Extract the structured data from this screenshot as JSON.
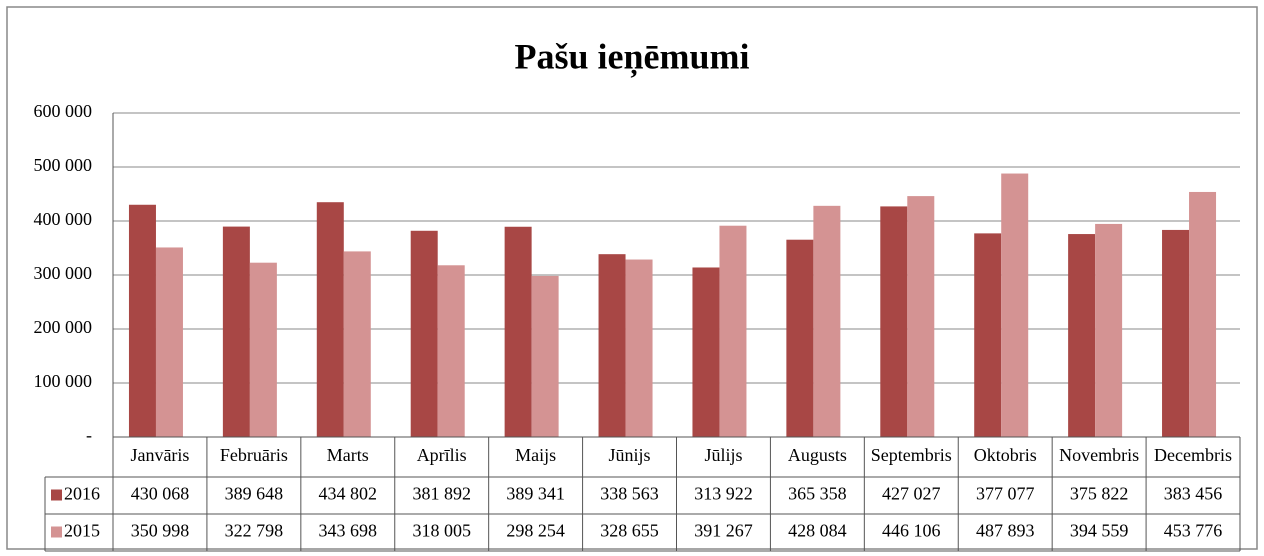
{
  "chart_data": {
    "type": "bar",
    "title": "Pašu ieņēmumi",
    "categories": [
      "Janvāris",
      "Februāris",
      "Marts",
      "Aprīlis",
      "Maijs",
      "Jūnijs",
      "Jūlijs",
      "Augusts",
      "Septembris",
      "Oktobris",
      "Novembris",
      "Decembris"
    ],
    "series": [
      {
        "name": "2016",
        "color": "#a84745",
        "values": [
          430068,
          389648,
          434802,
          381892,
          389341,
          338563,
          313922,
          365358,
          427027,
          377077,
          375822,
          383456
        ],
        "value_labels": [
          "430 068",
          "389 648",
          "434 802",
          "381 892",
          "389 341",
          "338 563",
          "313 922",
          "365 358",
          "427 027",
          "377 077",
          "375 822",
          "383 456"
        ]
      },
      {
        "name": "2015",
        "color": "#d49393",
        "values": [
          350998,
          322798,
          343698,
          318005,
          298254,
          328655,
          391267,
          428084,
          446106,
          487893,
          394559,
          453776
        ],
        "value_labels": [
          "350 998",
          "322 798",
          "343 698",
          "318 005",
          "298 254",
          "328 655",
          "391 267",
          "428 084",
          "446 106",
          "487 893",
          "394 559",
          "453 776"
        ]
      }
    ],
    "ylim": [
      0,
      600000
    ],
    "yticks": [
      {
        "value": 0,
        "label": "-"
      },
      {
        "value": 100000,
        "label": "100 000"
      },
      {
        "value": 200000,
        "label": "200 000"
      },
      {
        "value": 300000,
        "label": "300 000"
      },
      {
        "value": 400000,
        "label": "400 000"
      },
      {
        "value": 500000,
        "label": "500 000"
      },
      {
        "value": 600000,
        "label": "600 000"
      }
    ],
    "grid": true
  }
}
